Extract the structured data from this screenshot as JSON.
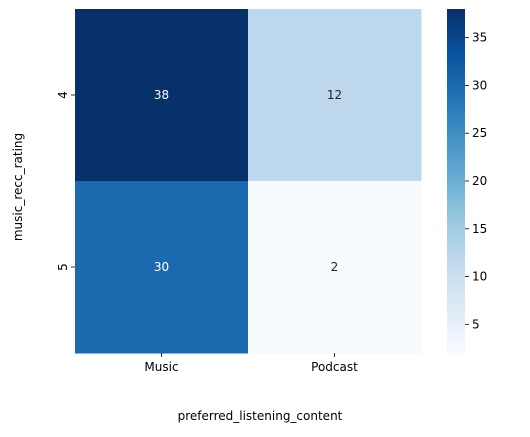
{
  "chart_data": {
    "type": "heatmap",
    "title": "",
    "xlabel": "preferred_listening_content",
    "ylabel": "music_recc_rating",
    "x_categories": [
      "Music",
      "Podcast"
    ],
    "y_categories": [
      "4",
      "5"
    ],
    "values": [
      [
        38,
        12
      ],
      [
        30,
        2
      ]
    ],
    "colormap": "Blues",
    "vmin": 2,
    "vmax": 38,
    "colorbar_ticks": [
      5,
      10,
      15,
      20,
      25,
      30,
      35
    ],
    "grid": false,
    "annotations": true
  }
}
